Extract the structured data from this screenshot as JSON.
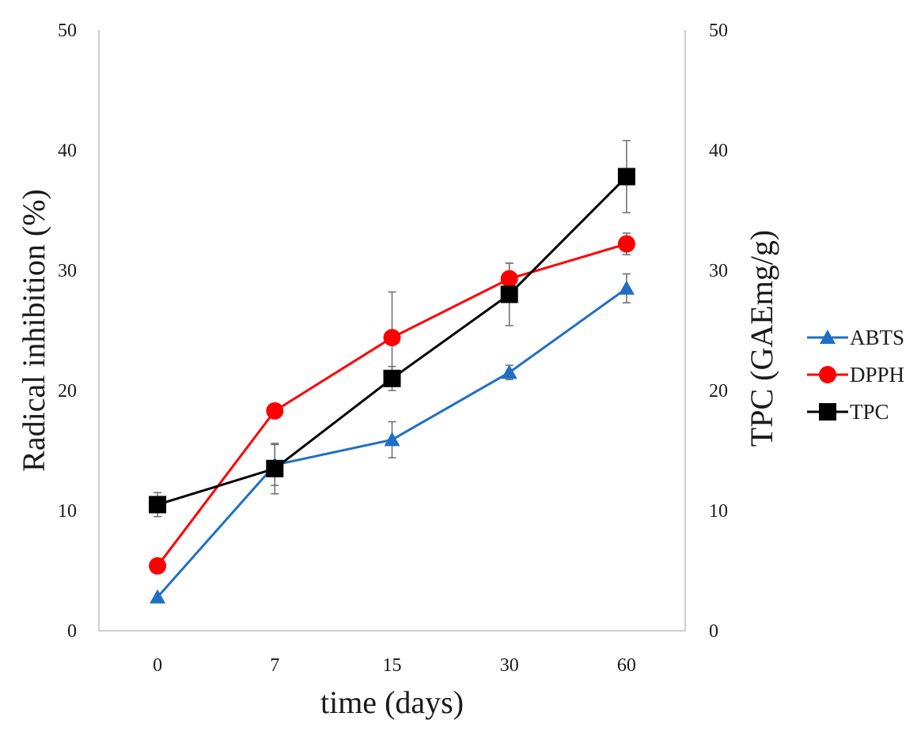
{
  "chart_data": {
    "type": "line",
    "categories": [
      "0",
      "7",
      "15",
      "30",
      "60"
    ],
    "xlabel": "time (days)",
    "ylabel_left": "Radical inhibition (%)",
    "ylabel_right": "TPC (GAEmg/g)",
    "ylim_left": [
      0,
      50
    ],
    "ylim_right": [
      0,
      50
    ],
    "yticks_left": [
      "0",
      "10",
      "20",
      "30",
      "40",
      "50"
    ],
    "yticks_right": [
      "0",
      "10",
      "20",
      "30",
      "40",
      "50"
    ],
    "grid": false,
    "legend_position": "right",
    "series": [
      {
        "name": "ABTS",
        "axis": "left",
        "marker": "triangle",
        "color": "#1f6fc5",
        "values": [
          2.8,
          13.8,
          15.9,
          21.5,
          28.5
        ],
        "errors": [
          0.0,
          1.7,
          1.5,
          0.6,
          1.2
        ]
      },
      {
        "name": "DPPH",
        "axis": "left",
        "marker": "circle",
        "color": "#ff0000",
        "values": [
          5.4,
          18.3,
          24.4,
          29.3,
          32.2
        ],
        "errors": [
          0.0,
          0.0,
          3.8,
          1.3,
          0.9
        ]
      },
      {
        "name": "TPC",
        "axis": "right",
        "marker": "square",
        "color": "#000000",
        "values": [
          10.5,
          13.5,
          21.0,
          28.0,
          37.8
        ],
        "errors": [
          1.0,
          2.1,
          1.0,
          2.6,
          3.0
        ]
      }
    ]
  }
}
